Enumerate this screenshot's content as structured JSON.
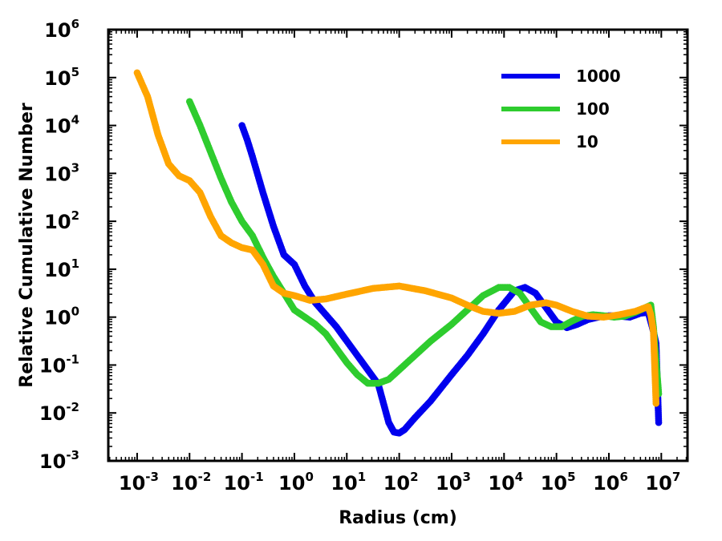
{
  "chart_data": {
    "type": "scatter",
    "title": "",
    "xlabel": "Radius (cm)",
    "ylabel": "Relative Cumulative Number",
    "xscale": "log",
    "yscale": "log",
    "xlim_exp": [
      -3.55,
      7.5
    ],
    "ylim_exp": [
      -3,
      6
    ],
    "x_tick_exponents": [
      -3,
      -2,
      -1,
      0,
      1,
      2,
      3,
      4,
      5,
      6,
      7
    ],
    "y_tick_exponents": [
      -3,
      -2,
      -1,
      0,
      1,
      2,
      3,
      4,
      5,
      6
    ],
    "tick_base": "10",
    "legend_position": "top-right",
    "series": [
      {
        "name": "1000",
        "color": "#0000ee",
        "points_log10": [
          [
            -1.0,
            4.0
          ],
          [
            -0.9,
            3.7
          ],
          [
            -0.8,
            3.35
          ],
          [
            -0.6,
            2.6
          ],
          [
            -0.4,
            1.9
          ],
          [
            -0.2,
            1.3
          ],
          [
            0.0,
            1.1
          ],
          [
            0.2,
            0.65
          ],
          [
            0.4,
            0.3
          ],
          [
            0.6,
            0.05
          ],
          [
            0.8,
            -0.2
          ],
          [
            1.0,
            -0.5
          ],
          [
            1.2,
            -0.8
          ],
          [
            1.4,
            -1.1
          ],
          [
            1.6,
            -1.4
          ],
          [
            1.8,
            -2.2
          ],
          [
            1.9,
            -2.4
          ],
          [
            2.0,
            -2.42
          ],
          [
            2.1,
            -2.35
          ],
          [
            2.3,
            -2.1
          ],
          [
            2.6,
            -1.75
          ],
          [
            3.0,
            -1.2
          ],
          [
            3.3,
            -0.8
          ],
          [
            3.6,
            -0.35
          ],
          [
            3.9,
            0.15
          ],
          [
            4.2,
            0.55
          ],
          [
            4.4,
            0.62
          ],
          [
            4.6,
            0.5
          ],
          [
            4.8,
            0.2
          ],
          [
            5.0,
            -0.1
          ],
          [
            5.2,
            -0.22
          ],
          [
            5.4,
            -0.15
          ],
          [
            5.6,
            -0.05
          ],
          [
            5.8,
            0.0
          ],
          [
            6.0,
            0.03
          ],
          [
            6.2,
            0.02
          ],
          [
            6.4,
            0.0
          ],
          [
            6.6,
            0.08
          ],
          [
            6.75,
            0.1
          ],
          [
            6.85,
            -0.3
          ],
          [
            6.9,
            -0.55
          ],
          [
            6.95,
            -2.2
          ]
        ]
      },
      {
        "name": "100",
        "color": "#2ecc2e",
        "points_log10": [
          [
            -2.0,
            4.5
          ],
          [
            -1.8,
            4.0
          ],
          [
            -1.6,
            3.45
          ],
          [
            -1.4,
            2.9
          ],
          [
            -1.2,
            2.4
          ],
          [
            -1.0,
            2.0
          ],
          [
            -0.8,
            1.7
          ],
          [
            -0.6,
            1.25
          ],
          [
            -0.4,
            0.85
          ],
          [
            -0.2,
            0.5
          ],
          [
            0.0,
            0.15
          ],
          [
            0.2,
            0.0
          ],
          [
            0.4,
            -0.15
          ],
          [
            0.6,
            -0.35
          ],
          [
            0.8,
            -0.65
          ],
          [
            1.0,
            -0.95
          ],
          [
            1.2,
            -1.2
          ],
          [
            1.4,
            -1.38
          ],
          [
            1.6,
            -1.38
          ],
          [
            1.8,
            -1.3
          ],
          [
            2.0,
            -1.1
          ],
          [
            2.3,
            -0.8
          ],
          [
            2.6,
            -0.5
          ],
          [
            3.0,
            -0.15
          ],
          [
            3.3,
            0.15
          ],
          [
            3.6,
            0.45
          ],
          [
            3.9,
            0.62
          ],
          [
            4.1,
            0.62
          ],
          [
            4.3,
            0.5
          ],
          [
            4.5,
            0.2
          ],
          [
            4.7,
            -0.1
          ],
          [
            4.9,
            -0.2
          ],
          [
            5.1,
            -0.2
          ],
          [
            5.3,
            -0.08
          ],
          [
            5.5,
            0.02
          ],
          [
            5.7,
            0.05
          ],
          [
            5.9,
            0.03
          ],
          [
            6.1,
            0.0
          ],
          [
            6.3,
            0.02
          ],
          [
            6.5,
            0.1
          ],
          [
            6.7,
            0.2
          ],
          [
            6.8,
            0.25
          ],
          [
            6.85,
            -0.2
          ],
          [
            6.9,
            -0.9
          ],
          [
            6.95,
            -1.6
          ]
        ]
      },
      {
        "name": "10",
        "color": "#ffa500",
        "points_log10": [
          [
            -3.0,
            5.1
          ],
          [
            -2.8,
            4.6
          ],
          [
            -2.6,
            3.8
          ],
          [
            -2.4,
            3.2
          ],
          [
            -2.2,
            2.95
          ],
          [
            -2.0,
            2.85
          ],
          [
            -1.8,
            2.6
          ],
          [
            -1.6,
            2.1
          ],
          [
            -1.4,
            1.7
          ],
          [
            -1.2,
            1.55
          ],
          [
            -1.0,
            1.45
          ],
          [
            -0.8,
            1.4
          ],
          [
            -0.6,
            1.1
          ],
          [
            -0.4,
            0.65
          ],
          [
            -0.2,
            0.5
          ],
          [
            0.0,
            0.45
          ],
          [
            0.3,
            0.35
          ],
          [
            0.6,
            0.38
          ],
          [
            1.0,
            0.48
          ],
          [
            1.5,
            0.6
          ],
          [
            2.0,
            0.65
          ],
          [
            2.5,
            0.55
          ],
          [
            3.0,
            0.4
          ],
          [
            3.3,
            0.25
          ],
          [
            3.6,
            0.12
          ],
          [
            3.9,
            0.08
          ],
          [
            4.2,
            0.12
          ],
          [
            4.5,
            0.25
          ],
          [
            4.8,
            0.3
          ],
          [
            5.0,
            0.25
          ],
          [
            5.3,
            0.12
          ],
          [
            5.6,
            0.02
          ],
          [
            5.9,
            0.0
          ],
          [
            6.2,
            0.05
          ],
          [
            6.5,
            0.12
          ],
          [
            6.75,
            0.22
          ],
          [
            6.8,
            0.05
          ],
          [
            6.85,
            -0.3
          ],
          [
            6.9,
            -1.8
          ]
        ]
      }
    ]
  }
}
